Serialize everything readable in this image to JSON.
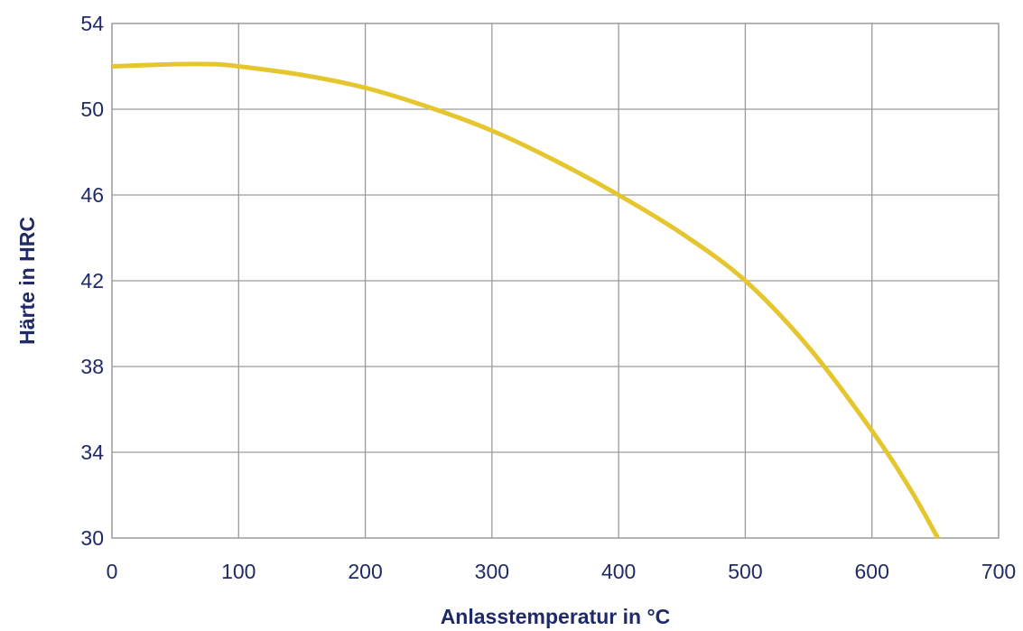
{
  "chart_data": {
    "type": "line",
    "title": "",
    "xlabel": "Anlasstemperatur in °C",
    "ylabel": "Härte in HRC",
    "xlim": [
      0,
      700
    ],
    "ylim": [
      30,
      54
    ],
    "x_ticks": [
      0,
      100,
      200,
      300,
      400,
      500,
      600,
      700
    ],
    "y_ticks": [
      30,
      34,
      38,
      42,
      46,
      50,
      54
    ],
    "grid": true,
    "legend": "none",
    "series": [
      {
        "color": "#e6c62e",
        "x": [
          0,
          50,
          80,
          100,
          150,
          200,
          250,
          300,
          350,
          400,
          450,
          500,
          550,
          600,
          630,
          652
        ],
        "y": [
          52,
          52.1,
          52.1,
          52,
          51.6,
          51,
          50.1,
          49,
          47.6,
          46,
          44.2,
          42,
          38.9,
          35,
          32.3,
          30
        ]
      }
    ]
  }
}
